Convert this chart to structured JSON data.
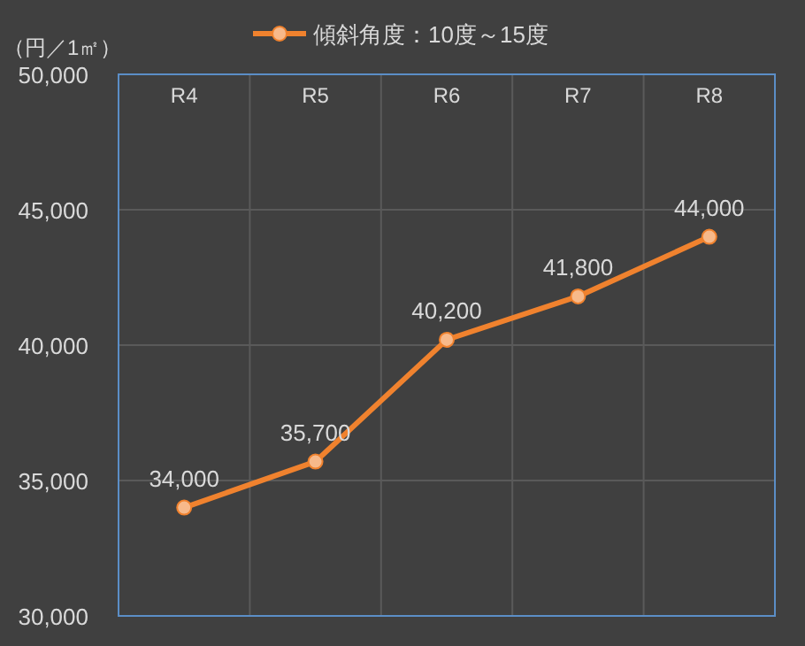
{
  "chart_data": {
    "type": "line",
    "ylabel": "（円／1㎡）",
    "categories": [
      "R4",
      "R5",
      "R6",
      "R7",
      "R8"
    ],
    "series": [
      {
        "name": "傾斜角度：10度～15度",
        "color": "#f0822e",
        "values": [
          34000,
          35700,
          40200,
          41800,
          44000
        ],
        "value_labels": [
          "34,000",
          "35,700",
          "40,200",
          "41,800",
          "44,000"
        ]
      }
    ],
    "ylim": [
      30000,
      50000
    ],
    "yticks": [
      {
        "value": 30000,
        "label": "30,000"
      },
      {
        "value": 35000,
        "label": "35,000"
      },
      {
        "value": 40000,
        "label": "40,000"
      },
      {
        "value": 45000,
        "label": "45,000"
      },
      {
        "value": 50000,
        "label": "50,000"
      }
    ],
    "grid": true,
    "legend": "top",
    "marker": "circle",
    "line_style": "solid"
  }
}
